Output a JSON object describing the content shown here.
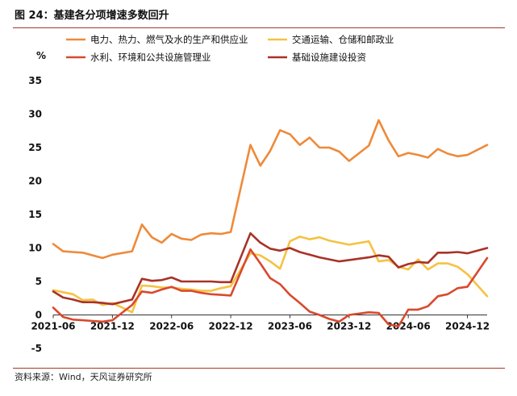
{
  "figure": {
    "title": "图 24：基建各分项增速多数回升",
    "source": "资料来源：Wind，天风证券研究所"
  },
  "chart_data": {
    "type": "line",
    "ylabel": "%",
    "ylim": [
      -5,
      35
    ],
    "yticks": [
      -5,
      0,
      5,
      10,
      15,
      20,
      25,
      30,
      35
    ],
    "xticks": [
      "2021-06",
      "2021-12",
      "2022-06",
      "2022-12",
      "2023-06",
      "2023-12",
      "2024-06",
      "2024-12"
    ],
    "x": [
      "2021-06",
      "2021-07",
      "2021-08",
      "2021-09",
      "2021-10",
      "2021-11",
      "2021-12",
      "2022-02",
      "2022-03",
      "2022-04",
      "2022-05",
      "2022-06",
      "2022-07",
      "2022-08",
      "2022-09",
      "2022-10",
      "2022-11",
      "2022-12",
      "2023-02",
      "2023-03",
      "2023-04",
      "2023-05",
      "2023-06",
      "2023-07",
      "2023-08",
      "2023-09",
      "2023-10",
      "2023-11",
      "2023-12",
      "2024-02",
      "2024-03",
      "2024-04",
      "2024-05",
      "2024-06",
      "2024-07",
      "2024-08",
      "2024-09",
      "2024-10",
      "2024-11",
      "2024-12",
      "2025-02"
    ],
    "grid": false,
    "legend_position": "top",
    "series": [
      {
        "name": "电力、热力、燃气及水的生产和供应业",
        "color": "#ee8a3a",
        "values": [
          10.6,
          9.5,
          9.4,
          9.3,
          8.9,
          8.5,
          9.0,
          9.5,
          13.5,
          11.6,
          10.8,
          12.1,
          11.4,
          11.2,
          12.0,
          12.2,
          12.1,
          12.4,
          25.4,
          22.3,
          24.5,
          27.6,
          27.0,
          25.4,
          26.5,
          25.0,
          25.0,
          24.4,
          23.0,
          25.3,
          29.1,
          26.1,
          23.7,
          24.2,
          23.9,
          23.5,
          24.8,
          24.1,
          23.7,
          23.9,
          25.4
        ]
      },
      {
        "name": "交通运输、仓储和邮政业",
        "color": "#f5c242",
        "values": [
          3.7,
          3.4,
          3.1,
          2.2,
          2.3,
          1.5,
          1.8,
          0.4,
          4.4,
          4.3,
          4.1,
          4.1,
          3.9,
          3.8,
          3.6,
          3.6,
          4.0,
          4.3,
          9.2,
          8.9,
          8.0,
          6.9,
          11.0,
          11.7,
          11.3,
          11.6,
          11.1,
          10.8,
          10.5,
          11.0,
          8.0,
          8.2,
          7.2,
          6.8,
          8.3,
          6.8,
          7.7,
          7.7,
          7.2,
          6.1,
          2.8
        ]
      },
      {
        "name": "水利、环境和公共设施管理业",
        "color": "#d9492e",
        "values": [
          1.1,
          -0.3,
          -0.7,
          -0.8,
          -0.9,
          -1.0,
          -0.8,
          1.5,
          3.5,
          3.3,
          3.8,
          4.2,
          3.6,
          3.6,
          3.3,
          3.1,
          3.0,
          2.9,
          9.8,
          7.7,
          5.5,
          4.6,
          3.0,
          1.8,
          0.5,
          0.0,
          -0.6,
          -1.0,
          0.0,
          0.4,
          0.3,
          -1.4,
          -1.7,
          0.8,
          0.8,
          1.3,
          2.8,
          3.1,
          4.0,
          4.2,
          8.5
        ]
      },
      {
        "name": "基础设施建设投资",
        "color": "#a83227",
        "values": [
          3.5,
          2.6,
          2.3,
          1.9,
          1.9,
          1.8,
          1.6,
          2.3,
          5.4,
          5.1,
          5.2,
          5.6,
          5.0,
          5.0,
          5.0,
          5.0,
          4.9,
          4.9,
          12.2,
          10.8,
          9.9,
          9.6,
          10.0,
          9.4,
          9.0,
          8.6,
          8.3,
          8.0,
          8.2,
          8.6,
          8.9,
          8.7,
          7.1,
          7.6,
          7.9,
          7.8,
          9.3,
          9.3,
          9.4,
          9.2,
          10.0
        ]
      }
    ]
  }
}
